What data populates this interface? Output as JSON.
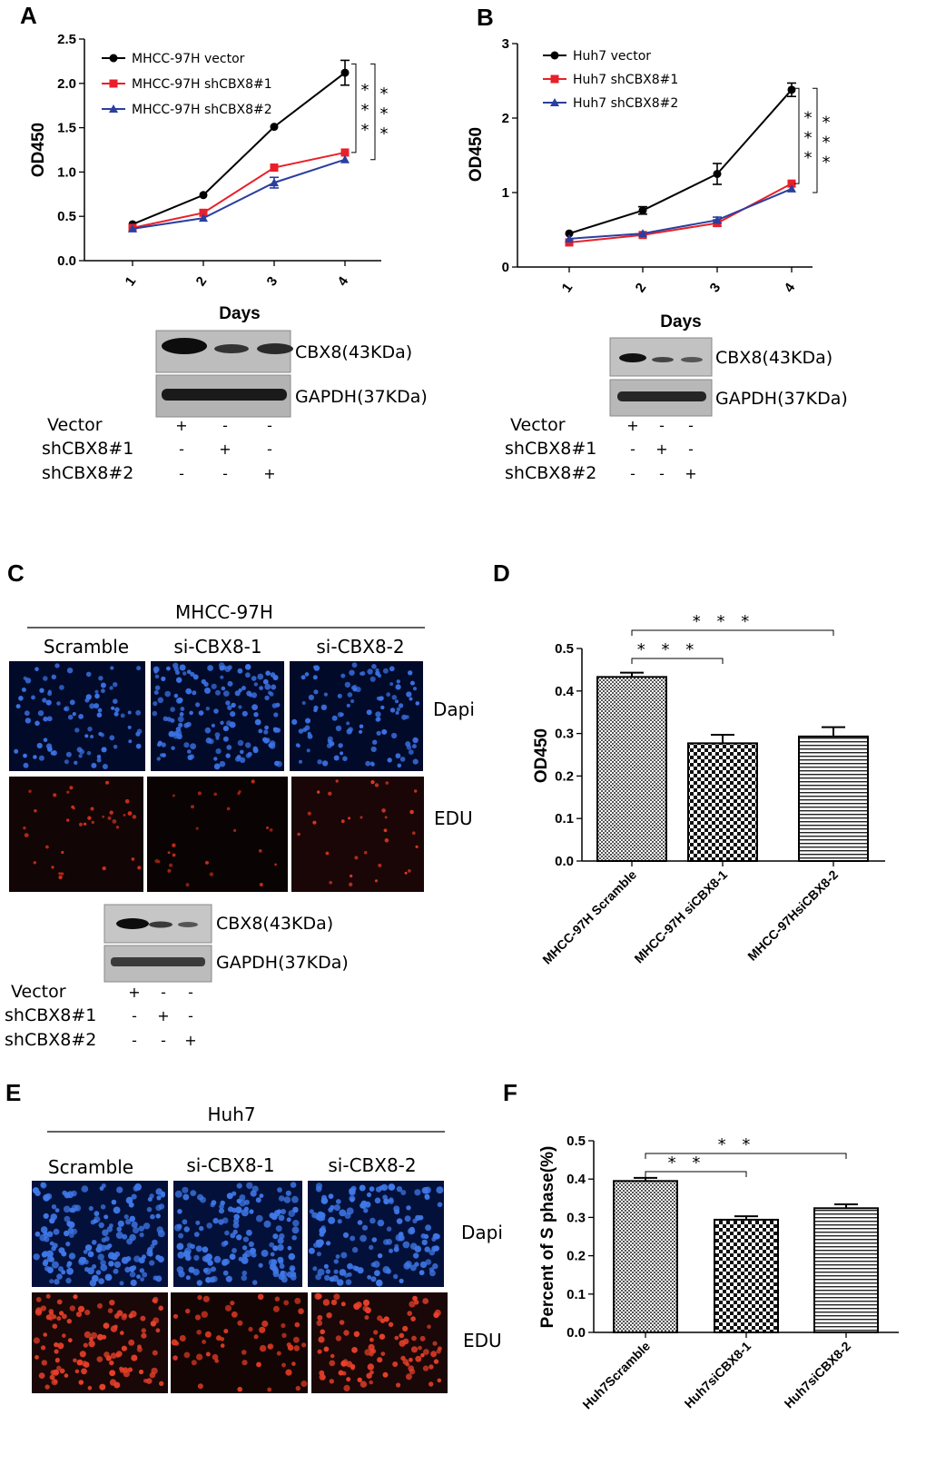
{
  "panels": {
    "A": {
      "letter": "A",
      "blot": {
        "bands": [
          "CBX8(43KDa)",
          "GAPDH(37KDa)"
        ],
        "conditions": [
          {
            "label": "Vector",
            "marks": [
              "+",
              "-",
              "-"
            ]
          },
          {
            "label": "shCBX8#1",
            "marks": [
              "-",
              "+",
              "-"
            ]
          },
          {
            "label": "shCBX8#2",
            "marks": [
              "-",
              "-",
              "+"
            ]
          }
        ]
      }
    },
    "B": {
      "letter": "B",
      "blot": {
        "bands": [
          "CBX8(43KDa)",
          "GAPDH(37KDa)"
        ],
        "conditions": [
          {
            "label": "Vector",
            "marks": [
              "+",
              "-",
              "-"
            ]
          },
          {
            "label": "shCBX8#1",
            "marks": [
              "-",
              "+",
              "-"
            ]
          },
          {
            "label": "shCBX8#2",
            "marks": [
              "-",
              "-",
              "+"
            ]
          }
        ]
      }
    },
    "C": {
      "letter": "C",
      "title": "MHCC-97H",
      "columns": [
        "Scramble",
        "si-CBX8-1",
        "si-CBX8-2"
      ],
      "rows": [
        "Dapi",
        "EDU"
      ],
      "blot": {
        "bands": [
          "CBX8(43KDa)",
          "GAPDH(37KDa)"
        ],
        "conditions": [
          {
            "label": "Vector",
            "marks": [
              "+",
              "-",
              "-"
            ]
          },
          {
            "label": "shCBX8#1",
            "marks": [
              "-",
              "+",
              "-"
            ]
          },
          {
            "label": "shCBX8#2",
            "marks": [
              "-",
              "-",
              "+"
            ]
          }
        ]
      }
    },
    "D": {
      "letter": "D"
    },
    "E": {
      "letter": "E",
      "title": "Huh7",
      "columns": [
        "Scramble",
        "si-CBX8-1",
        "si-CBX8-2"
      ],
      "rows": [
        "Dapi",
        "EDU"
      ]
    },
    "F": {
      "letter": "F"
    }
  },
  "colors": {
    "black": "#000000",
    "red": "#e8202a",
    "blue": "#2a3f9e",
    "dapi": "#2f63d8",
    "edu": "#e0321e"
  },
  "chart_data": [
    {
      "panel": "A",
      "type": "line",
      "xlabel": "Days",
      "ylabel": "OD450",
      "x": [
        1,
        2,
        3,
        4
      ],
      "xticks": [
        "1",
        "2",
        "3",
        "4"
      ],
      "yticks": [
        "0.0",
        "0.5",
        "1.0",
        "1.5",
        "2.0",
        "2.5"
      ],
      "ylim": [
        0,
        2.5
      ],
      "series": [
        {
          "name": "MHCC-97H  vector",
          "values": [
            0.41,
            0.74,
            1.51,
            2.12
          ],
          "errors": [
            0.02,
            0.02,
            0.03,
            0.14
          ],
          "color": "#000000",
          "marker": "circle"
        },
        {
          "name": "MHCC-97H  shCBX8#1",
          "values": [
            0.37,
            0.54,
            1.05,
            1.22
          ],
          "errors": [
            0.02,
            0.02,
            0.03,
            0.03
          ],
          "color": "#e8202a",
          "marker": "square"
        },
        {
          "name": "MHCC-97H  shCBX8#2",
          "values": [
            0.36,
            0.48,
            0.88,
            1.14
          ],
          "errors": [
            0.02,
            0.03,
            0.06,
            0.03
          ],
          "color": "#2a3f9e",
          "marker": "triangle"
        }
      ],
      "significance": [
        "* * *",
        "* * *"
      ],
      "legend": "top-left"
    },
    {
      "panel": "B",
      "type": "line",
      "xlabel": "Days",
      "ylabel": "OD450",
      "x": [
        1,
        2,
        3,
        4
      ],
      "xticks": [
        "1",
        "2",
        "3",
        "4"
      ],
      "yticks": [
        "0",
        "1",
        "2",
        "3"
      ],
      "ylim": [
        0,
        3
      ],
      "series": [
        {
          "name": "Huh7 vector",
          "values": [
            0.45,
            0.76,
            1.25,
            2.38
          ],
          "errors": [
            0.02,
            0.05,
            0.14,
            0.09
          ],
          "color": "#000000",
          "marker": "circle"
        },
        {
          "name": "Huh7 shCBX8#1",
          "values": [
            0.33,
            0.43,
            0.59,
            1.12
          ],
          "errors": [
            0.02,
            0.02,
            0.04,
            0.02
          ],
          "color": "#e8202a",
          "marker": "square"
        },
        {
          "name": "Huh7 shCBX8#2",
          "values": [
            0.38,
            0.45,
            0.63,
            1.05
          ],
          "errors": [
            0.02,
            0.02,
            0.04,
            0.02
          ],
          "color": "#2a3f9e",
          "marker": "triangle"
        }
      ],
      "significance": [
        "* * *",
        "* * *"
      ],
      "legend": "top-left"
    },
    {
      "panel": "D",
      "type": "bar",
      "ylabel": "OD450",
      "categories": [
        "MHCC-97H Scramble",
        "MHCC-97H siCBX8-1",
        "MHCC-97HsiCBX8-2"
      ],
      "values": [
        0.433,
        0.277,
        0.293
      ],
      "errors": [
        0.01,
        0.02,
        0.022
      ],
      "patterns": [
        "fine-check",
        "check",
        "hlines"
      ],
      "yticks": [
        "0.0",
        "0.1",
        "0.2",
        "0.3",
        "0.4",
        "0.5"
      ],
      "ylim": [
        0,
        0.5
      ],
      "significance": [
        "* * *",
        "* * *"
      ]
    },
    {
      "panel": "F",
      "type": "bar",
      "ylabel": "Percent of S phase(%)",
      "categories": [
        "Huh7Scramble",
        "Huh7siCBX8-1",
        "Huh7siCBX8-2"
      ],
      "values": [
        0.395,
        0.294,
        0.324
      ],
      "errors": [
        0.008,
        0.009,
        0.01
      ],
      "patterns": [
        "fine-check",
        "check",
        "hlines"
      ],
      "yticks": [
        "0.0",
        "0.1",
        "0.2",
        "0.3",
        "0.4",
        "0.5"
      ],
      "ylim": [
        0,
        0.5
      ],
      "significance": [
        "* *",
        "* *"
      ]
    }
  ]
}
